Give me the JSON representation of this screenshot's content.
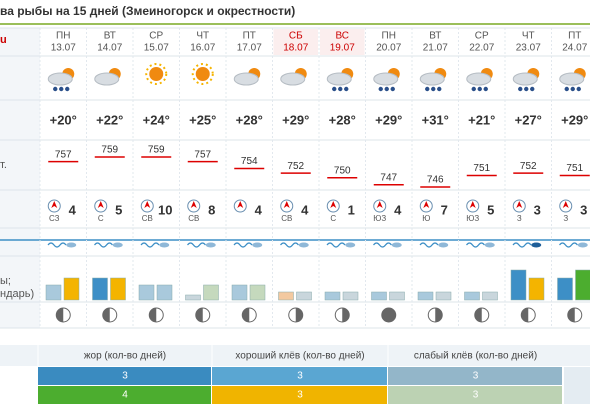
{
  "title": "ва рыбы на 15 дней (Змеиногорск и окрестности)",
  "side_labels": [
    "u",
    "т.",
    "ы;",
    "ндарь)"
  ],
  "days": [
    {
      "name": "ПН",
      "date": "13.07",
      "weekend": false,
      "temp": "+20°",
      "pressure": 757,
      "wind_dir": "СЗ",
      "wind_speed": 4,
      "bite": [
        {
          "value": 15,
          "color": "#a9c9dc"
        },
        {
          "value": 22,
          "color": "#f4b400"
        }
      ]
    },
    {
      "name": "ВТ",
      "date": "14.07",
      "weekend": false,
      "temp": "+22°",
      "pressure": 759,
      "wind_dir": "С",
      "wind_speed": 5,
      "bite": [
        {
          "value": 22,
          "color": "#3d8fc6"
        },
        {
          "value": 22,
          "color": "#f4b400"
        }
      ]
    },
    {
      "name": "СР",
      "date": "15.07",
      "weekend": false,
      "temp": "+24°",
      "pressure": 759,
      "wind_dir": "СВ",
      "wind_speed": 10,
      "bite": [
        {
          "value": 15,
          "color": "#a9c9dc"
        },
        {
          "value": 15,
          "color": "#a9c9dc"
        }
      ]
    },
    {
      "name": "ЧТ",
      "date": "16.07",
      "weekend": false,
      "temp": "+25°",
      "pressure": 757,
      "wind_dir": "СВ",
      "wind_speed": 8,
      "bite": [
        {
          "value": 5,
          "color": "#c9d6dc"
        },
        {
          "value": 15,
          "color": "#c5d9bd"
        }
      ]
    },
    {
      "name": "ПТ",
      "date": "17.07",
      "weekend": false,
      "temp": "+28°",
      "pressure": 754,
      "wind_dir": null,
      "wind_speed": 4,
      "bite": [
        {
          "value": 15,
          "color": "#a9c9dc"
        },
        {
          "value": 15,
          "color": "#c5d9bd"
        }
      ]
    },
    {
      "name": "СБ",
      "date": "18.07",
      "weekend": true,
      "temp": "+29°",
      "pressure": 752,
      "wind_dir": "СВ",
      "wind_speed": 4,
      "bite": [
        {
          "value": 8,
          "color": "#f3c9a0"
        },
        {
          "value": 8,
          "color": "#c9d6dc"
        }
      ]
    },
    {
      "name": "ВС",
      "date": "19.07",
      "weekend": true,
      "temp": "+28°",
      "pressure": 750,
      "wind_dir": "С",
      "wind_speed": 1,
      "bite": [
        {
          "value": 8,
          "color": "#a9c9dc"
        },
        {
          "value": 8,
          "color": "#c9d6dc"
        }
      ]
    },
    {
      "name": "ПН",
      "date": "20.07",
      "weekend": false,
      "temp": "+29°",
      "pressure": 747,
      "wind_dir": "ЮЗ",
      "wind_speed": 4,
      "bite": [
        {
          "value": 8,
          "color": "#a9c9dc"
        },
        {
          "value": 8,
          "color": "#c9d6dc"
        }
      ]
    },
    {
      "name": "ВТ",
      "date": "21.07",
      "weekend": false,
      "temp": "+31°",
      "pressure": 746,
      "wind_dir": "Ю",
      "wind_speed": 7,
      "bite": [
        {
          "value": 8,
          "color": "#a9c9dc"
        },
        {
          "value": 8,
          "color": "#c9d6dc"
        }
      ]
    },
    {
      "name": "СР",
      "date": "22.07",
      "weekend": false,
      "temp": "+21°",
      "pressure": 751,
      "wind_dir": "ЮЗ",
      "wind_speed": 5,
      "bite": [
        {
          "value": 8,
          "color": "#a9c9dc"
        },
        {
          "value": 8,
          "color": "#c9d6dc"
        }
      ]
    },
    {
      "name": "ЧТ",
      "date": "23.07",
      "weekend": false,
      "temp": "+27°",
      "pressure": 752,
      "wind_dir": "З",
      "wind_speed": 3,
      "bite": [
        {
          "value": 30,
          "color": "#3d8fc6"
        },
        {
          "value": 22,
          "color": "#f4b400"
        }
      ]
    },
    {
      "name": "ПТ",
      "date": "24.07",
      "weekend": false,
      "temp": "+29°",
      "pressure": 751,
      "wind_dir": "З",
      "wind_speed": 3,
      "bite": [
        {
          "value": 22,
          "color": "#3d8fc6"
        },
        {
          "value": 30,
          "color": "#4cad2f"
        }
      ]
    }
  ],
  "summary": {
    "headers": [
      "жор (кол-во дней)",
      "хороший клёв (кол-во дней)",
      "слабый клёв (кол-во дней)"
    ],
    "rows": [
      [
        {
          "value": 3,
          "color": "#3a8bc0"
        },
        {
          "value": 3,
          "color": "#5aa6d2"
        },
        {
          "value": 3,
          "color": "#93b6c9"
        }
      ],
      [
        {
          "value": 4,
          "color": "#4cad2f"
        },
        {
          "value": 3,
          "color": "#f0b400"
        },
        {
          "value": 3,
          "color": "#bcd2b3"
        }
      ]
    ]
  }
}
